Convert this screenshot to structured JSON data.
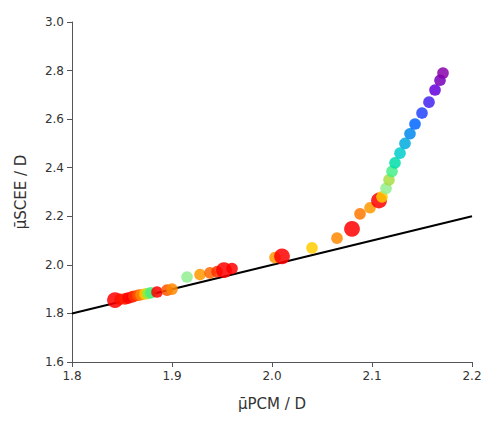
{
  "chart_data": {
    "type": "scatter",
    "xlabel": "μ̄PCM / D",
    "ylabel": "μ̄SCEE / D",
    "xlim": [
      1.8,
      2.2
    ],
    "ylim": [
      1.6,
      3.0
    ],
    "xticks": [
      1.8,
      1.9,
      {
        "value": 2.0,
        "label": "2.0"
      },
      2.1,
      2.2
    ],
    "yticks": [
      1.6,
      1.8,
      {
        "value": 2.0,
        "label": "2.0"
      },
      2.2,
      2.4,
      2.6,
      2.8,
      {
        "value": 3.0,
        "label": "3.0"
      }
    ],
    "grid": false,
    "series": [
      {
        "type": "line",
        "color": "#000000",
        "line_style": "solid",
        "x": [
          1.8,
          2.2
        ],
        "values": [
          1.8,
          2.2
        ]
      },
      {
        "type": "scatter",
        "marker": "circle",
        "x": [
          1.843,
          1.848,
          1.853,
          1.856,
          1.86,
          1.862,
          1.866,
          1.869,
          1.873,
          1.876,
          1.879,
          1.885,
          1.895,
          1.9,
          1.915,
          1.928,
          1.938,
          1.945,
          1.952,
          1.96,
          2.003,
          2.01,
          2.04,
          2.065,
          2.08,
          2.088,
          2.098,
          2.107,
          2.11,
          2.114,
          2.117,
          2.12,
          2.123,
          2.128,
          2.133,
          2.138,
          2.143,
          2.15,
          2.157,
          2.163,
          2.168,
          2.171
        ],
        "values": [
          1.855,
          1.858,
          1.86,
          1.863,
          1.868,
          1.871,
          1.875,
          1.877,
          1.88,
          1.882,
          1.885,
          1.888,
          1.896,
          1.9,
          1.95,
          1.96,
          1.967,
          1.972,
          1.978,
          1.985,
          2.03,
          2.035,
          2.07,
          2.11,
          2.148,
          2.21,
          2.235,
          2.265,
          2.28,
          2.315,
          2.35,
          2.385,
          2.42,
          2.46,
          2.5,
          2.54,
          2.58,
          2.625,
          2.67,
          2.72,
          2.76,
          2.79
        ],
        "colors": [
          "#FF0000",
          "#FF1100",
          "#FF2200",
          "#FF0000",
          "#FF0000",
          "#FF3300",
          "#FF5500",
          "#FF8800",
          "#FFCC00",
          "#88EE44",
          "#44EE88",
          "#FF0000",
          "#FF5500",
          "#FF8800",
          "#90EE90",
          "#FF9900",
          "#FF6600",
          "#FF3300",
          "#FF0000",
          "#FF0000",
          "#FF9900",
          "#FF0000",
          "#FFCC00",
          "#FF8800",
          "#FF0000",
          "#FF7700",
          "#FF9900",
          "#FF0000",
          "#FFCC00",
          "#90EE90",
          "#AADD44",
          "#44EE88",
          "#00DDAA",
          "#00CCCC",
          "#00AADD",
          "#0088EE",
          "#0066FF",
          "#2244FF",
          "#4422EE",
          "#6600DD",
          "#7700BB",
          "#8800AA"
        ],
        "sizes": [
          130,
          70,
          70,
          70,
          70,
          70,
          70,
          70,
          70,
          70,
          70,
          70,
          70,
          70,
          70,
          70,
          70,
          70,
          130,
          70,
          70,
          130,
          70,
          70,
          130,
          70,
          70,
          130,
          70,
          70,
          70,
          70,
          70,
          70,
          70,
          70,
          70,
          70,
          70,
          70,
          70,
          70
        ]
      }
    ]
  }
}
